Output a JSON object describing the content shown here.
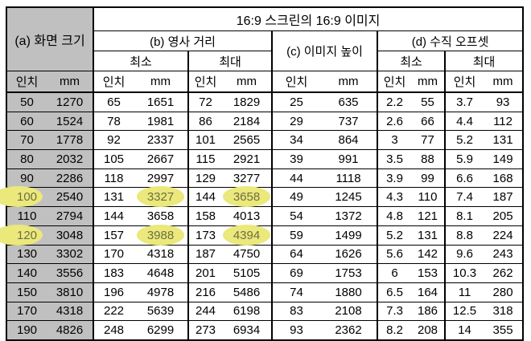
{
  "table": {
    "title": "16:9 스크린의 16:9 이미지",
    "headers": {
      "a": "(a) 화면 크기",
      "b": "(b) 영사 거리",
      "c": "(c) 이미지 높이",
      "d": "(d) 수직 오프셋",
      "min": "최소",
      "max": "최대",
      "inch": "인치",
      "mm": "mm"
    },
    "colors": {
      "header_gray": "#c0c0c0",
      "highlight_yellow": "#ebe87c",
      "highlight_text": "#6e6e42",
      "border": "#000000"
    },
    "rows": [
      [
        "50",
        "1270",
        "65",
        "1651",
        "72",
        "1829",
        "25",
        "635",
        "2.2",
        "55",
        "3.7",
        "93"
      ],
      [
        "60",
        "1524",
        "78",
        "1981",
        "86",
        "2184",
        "29",
        "737",
        "2.6",
        "66",
        "4.4",
        "112"
      ],
      [
        "70",
        "1778",
        "92",
        "2337",
        "101",
        "2565",
        "34",
        "864",
        "3",
        "77",
        "5.2",
        "131"
      ],
      [
        "80",
        "2032",
        "105",
        "2667",
        "115",
        "2921",
        "39",
        "991",
        "3.5",
        "88",
        "5.9",
        "149"
      ],
      [
        "90",
        "2286",
        "118",
        "2997",
        "129",
        "3277",
        "44",
        "1118",
        "3.9",
        "99",
        "6.6",
        "168"
      ],
      [
        "100",
        "2540",
        "131",
        "3327",
        "144",
        "3658",
        "49",
        "1245",
        "4.3",
        "110",
        "7.4",
        "187"
      ],
      [
        "110",
        "2794",
        "144",
        "3658",
        "158",
        "4013",
        "54",
        "1372",
        "4.8",
        "121",
        "8.1",
        "205"
      ],
      [
        "120",
        "3048",
        "157",
        "3988",
        "173",
        "4394",
        "59",
        "1499",
        "5.2",
        "131",
        "8.8",
        "224"
      ],
      [
        "130",
        "3302",
        "170",
        "4318",
        "187",
        "4750",
        "64",
        "1626",
        "5.6",
        "142",
        "9.6",
        "243"
      ],
      [
        "140",
        "3556",
        "183",
        "4648",
        "201",
        "5105",
        "69",
        "1753",
        "6",
        "153",
        "10.3",
        "262"
      ],
      [
        "150",
        "3810",
        "196",
        "4978",
        "216",
        "5486",
        "74",
        "1880",
        "6.5",
        "164",
        "11",
        "280"
      ],
      [
        "170",
        "4318",
        "222",
        "5639",
        "244",
        "6198",
        "83",
        "2108",
        "7.3",
        "186",
        "12.5",
        "318"
      ],
      [
        "190",
        "4826",
        "248",
        "6299",
        "273",
        "6934",
        "93",
        "2362",
        "8.2",
        "208",
        "14",
        "355"
      ]
    ],
    "highlights": [
      {
        "row": 5,
        "cells": [
          0,
          3,
          5
        ]
      },
      {
        "row": 7,
        "cells": [
          0,
          3,
          5
        ]
      }
    ]
  }
}
